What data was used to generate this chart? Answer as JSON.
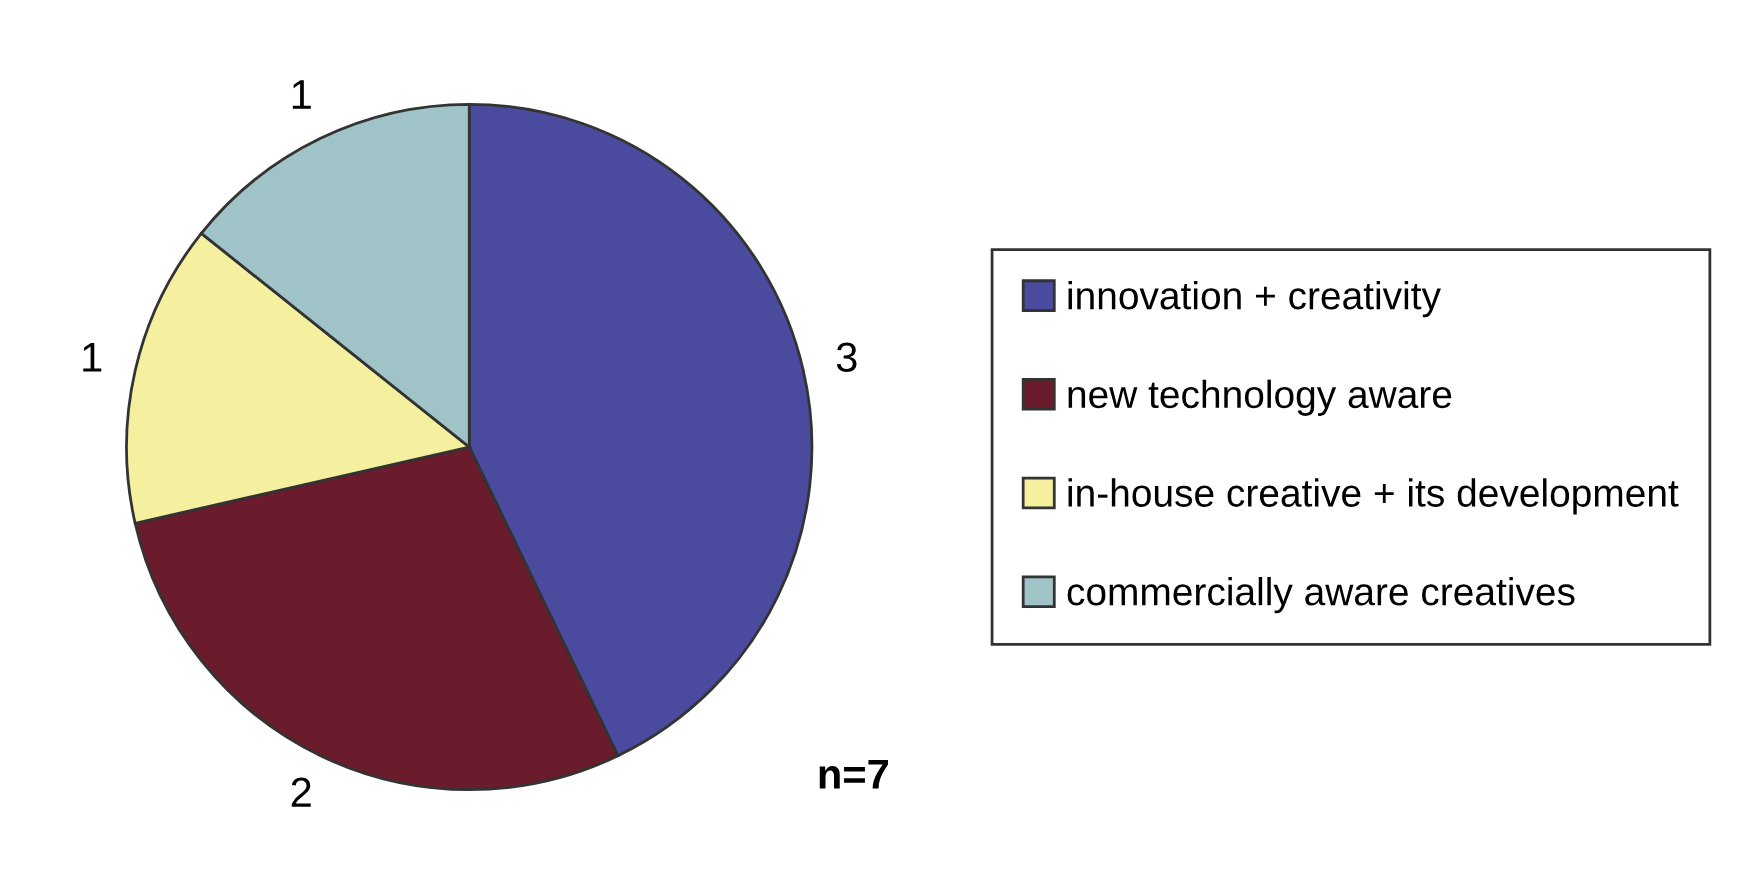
{
  "chart_data": {
    "type": "pie",
    "categories": [
      "innovation + creativity",
      "new technology aware",
      "in-house creative + its development",
      "commercially aware creatives"
    ],
    "values": [
      3,
      2,
      1,
      1
    ],
    "colors": [
      "#4a4a9e",
      "#6a1c2c",
      "#f4f0a0",
      "#9fc3c6"
    ],
    "data_labels": true,
    "legend": "right",
    "annotations": [
      "n=7"
    ]
  }
}
